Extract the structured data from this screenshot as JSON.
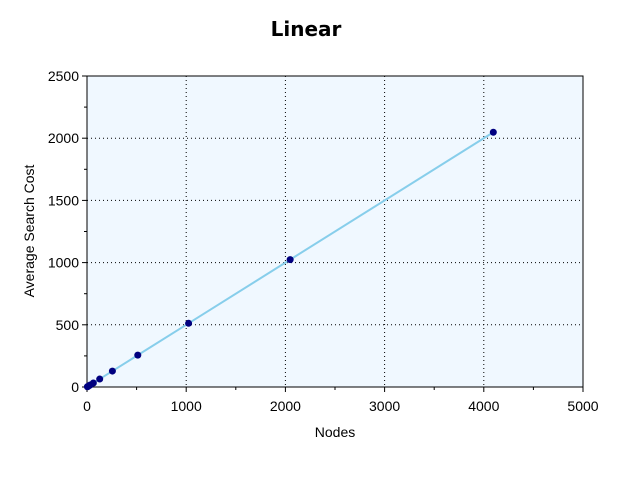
{
  "chart_data": {
    "type": "line",
    "title": "Linear",
    "xlabel": "Nodes",
    "ylabel": "Average Search Cost",
    "xlim": [
      0,
      5000
    ],
    "ylim": [
      0,
      2500
    ],
    "x_ticks": [
      0,
      1000,
      2000,
      3000,
      4000,
      5000
    ],
    "y_ticks": [
      0,
      500,
      1000,
      1500,
      2000,
      2500
    ],
    "grid": true,
    "legend": "none",
    "colors": {
      "plot_background": "#f0f8ff",
      "line": "#87ceeb",
      "marker": "#000080",
      "grid": "#000000"
    },
    "series": [
      {
        "x": [
          4,
          8,
          16,
          32,
          64,
          128,
          256,
          512,
          1024,
          2048,
          4096
        ],
        "y": [
          2,
          4,
          8,
          16,
          32,
          64,
          128,
          256,
          512,
          1024,
          2048
        ]
      }
    ]
  }
}
